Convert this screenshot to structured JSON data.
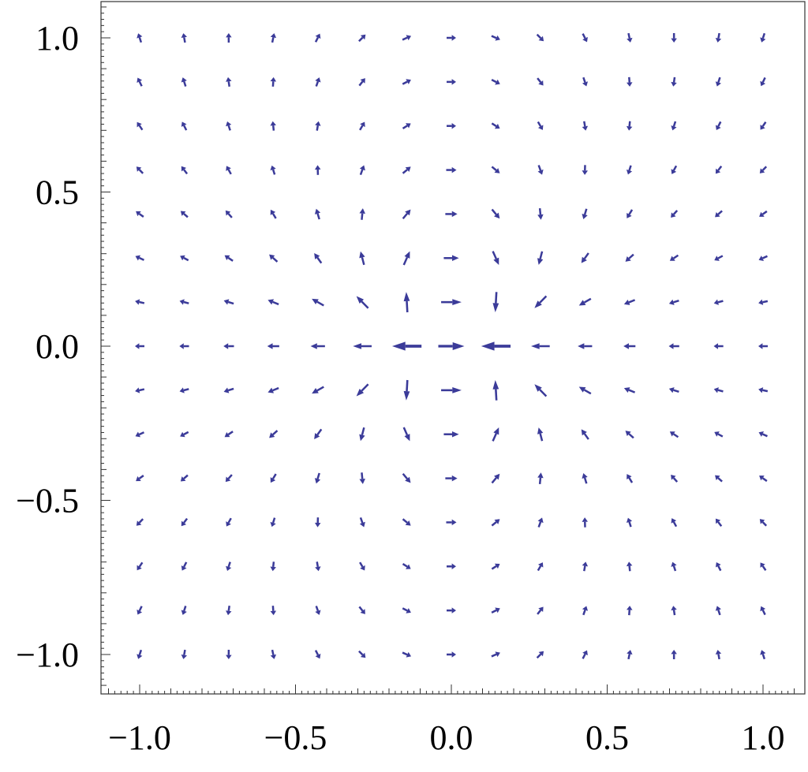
{
  "chart_data": {
    "type": "vector_field",
    "title": "",
    "xlabel": "",
    "ylabel": "",
    "xlim": [
      -1.13,
      1.13
    ],
    "ylim": [
      -1.13,
      1.13
    ],
    "grid": false,
    "legend": "none",
    "arrow_color": "#3b3b99",
    "xticks": [
      {
        "value": -1.0,
        "label": "−1.0"
      },
      {
        "value": -0.5,
        "label": "−0.5"
      },
      {
        "value": 0.0,
        "label": "0.0"
      },
      {
        "value": 0.5,
        "label": "0.5"
      },
      {
        "value": 1.0,
        "label": "1.0"
      }
    ],
    "yticks": [
      {
        "value": 1.0,
        "label": "1.0"
      },
      {
        "value": 0.5,
        "label": "0.5"
      },
      {
        "value": 0.0,
        "label": "0.0"
      },
      {
        "value": -0.5,
        "label": "−0.5"
      },
      {
        "value": -1.0,
        "label": "−1.0"
      }
    ],
    "grid_points_x": {
      "start": -1.0,
      "stop": 1.0,
      "count": 15
    },
    "grid_points_y": {
      "start": -1.0,
      "stop": 1.0,
      "count": 15
    },
    "field": "dipole field: sources at (-0.1, 0) and (+0.1, 0) with opposite sign"
  }
}
